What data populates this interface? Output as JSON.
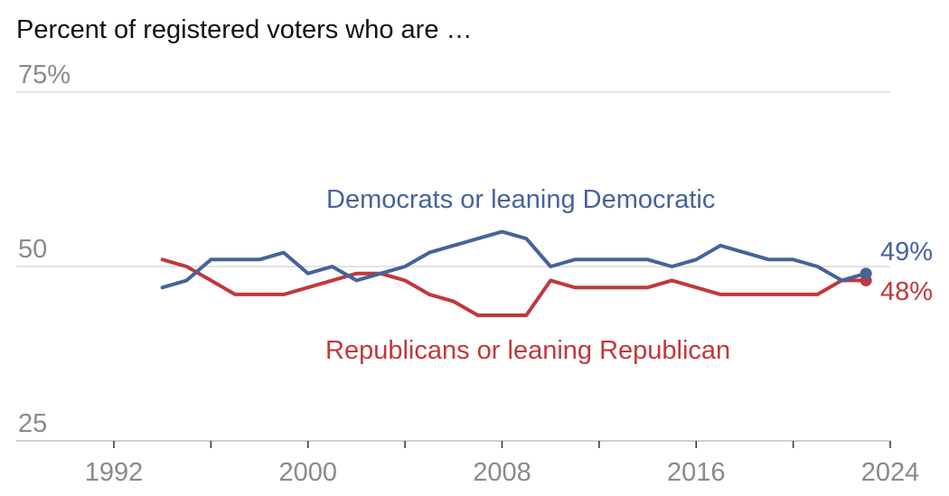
{
  "chart_data": {
    "type": "line",
    "title": "Percent of registered voters who are …",
    "y_ticks": [
      {
        "value": 75,
        "label": "75%"
      },
      {
        "value": 50,
        "label": "50"
      },
      {
        "value": 25,
        "label": "25"
      }
    ],
    "x_ticks": [
      {
        "value": 1992,
        "label": "1992"
      },
      {
        "value": 2000,
        "label": "2000"
      },
      {
        "value": 2008,
        "label": "2008"
      },
      {
        "value": 2016,
        "label": "2016"
      },
      {
        "value": 2024,
        "label": "2024"
      }
    ],
    "minor_x_ticks": [
      1996,
      2004,
      2012,
      2020
    ],
    "ylim": [
      25,
      75
    ],
    "xlim": [
      1990,
      2024
    ],
    "grid": true,
    "x": [
      1994,
      1995,
      1996,
      1997,
      1998,
      1999,
      2000,
      2001,
      2002,
      2003,
      2004,
      2005,
      2006,
      2007,
      2008,
      2009,
      2010,
      2011,
      2012,
      2013,
      2014,
      2015,
      2016,
      2017,
      2018,
      2019,
      2020,
      2021,
      2022,
      2023
    ],
    "series": [
      {
        "name": "Democrats or leaning Democratic",
        "color": "#46639a",
        "end_label": "49%",
        "values": [
          47,
          48,
          51,
          51,
          51,
          52,
          49,
          50,
          48,
          49,
          50,
          52,
          53,
          54,
          55,
          54,
          50,
          51,
          51,
          51,
          51,
          50,
          51,
          53,
          52,
          51,
          51,
          50,
          48,
          49
        ]
      },
      {
        "name": "Republicans or leaning Republican",
        "color": "#c1383a",
        "end_label": "48%",
        "values": [
          51,
          50,
          48,
          46,
          46,
          46,
          47,
          48,
          49,
          49,
          48,
          46,
          45,
          43,
          43,
          43,
          48,
          47,
          47,
          47,
          47,
          48,
          47,
          46,
          46,
          46,
          46,
          46,
          48,
          48
        ]
      }
    ]
  }
}
